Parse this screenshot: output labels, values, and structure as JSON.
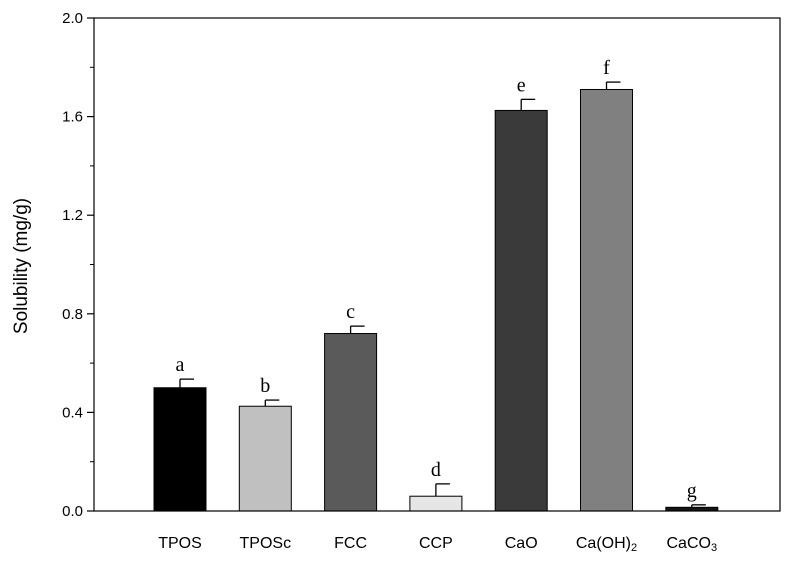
{
  "chart_data": {
    "type": "bar",
    "title": "",
    "xlabel": "",
    "ylabel": "Solubility (mg/g)",
    "ylim": [
      0,
      2.0
    ],
    "yticks": [
      0.0,
      0.4,
      0.8,
      1.2,
      1.6,
      2.0
    ],
    "ytick_labels": [
      "0.0",
      "0.4",
      "0.8",
      "1.2",
      "1.6",
      "2.0"
    ],
    "grid": false,
    "categories": [
      {
        "label": "TPOS",
        "sub": ""
      },
      {
        "label": "TPOSc",
        "sub": ""
      },
      {
        "label": "FCC",
        "sub": ""
      },
      {
        "label": "CCP",
        "sub": ""
      },
      {
        "label": "CaO",
        "sub": ""
      },
      {
        "label": "Ca(OH)",
        "sub": "2"
      },
      {
        "label": "CaCO",
        "sub": "3"
      }
    ],
    "values": [
      0.5,
      0.425,
      0.72,
      0.06,
      1.625,
      1.71,
      0.015
    ],
    "errors": [
      0.035,
      0.025,
      0.03,
      0.05,
      0.045,
      0.03,
      0.01
    ],
    "significance": [
      "a",
      "b",
      "c",
      "d",
      "e",
      "f",
      "g"
    ],
    "colors": [
      "#000000",
      "#c0c0c0",
      "#5a5a5a",
      "#e6e6e6",
      "#3a3a3a",
      "#808080",
      "#141414"
    ]
  }
}
